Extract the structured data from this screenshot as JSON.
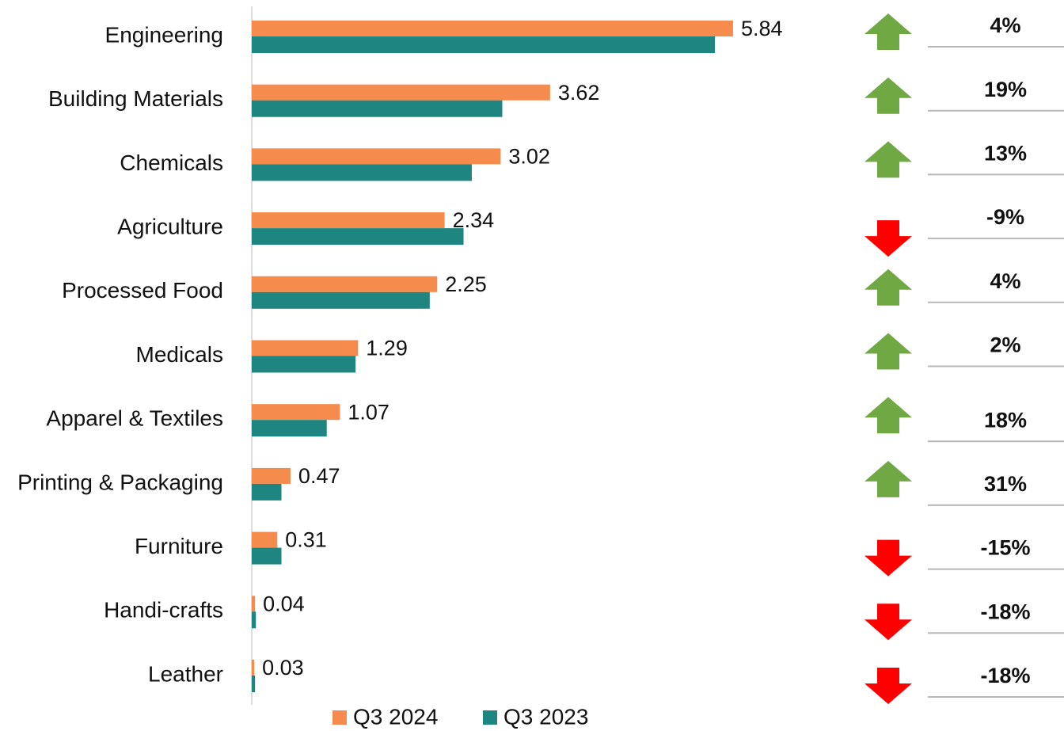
{
  "chart_data": {
    "type": "bar",
    "orientation": "horizontal",
    "categories": [
      "Engineering",
      "Building Materials",
      "Chemicals",
      "Agriculture",
      "Processed Food",
      "Medicals",
      "Apparel & Textiles",
      "Printing & Packaging",
      "Furniture",
      "Handi-crafts",
      "Leather"
    ],
    "series": [
      {
        "name": "Q3 2024",
        "color": "#f58b4c",
        "values": [
          5.84,
          3.62,
          3.02,
          2.34,
          2.25,
          1.29,
          1.07,
          0.47,
          0.31,
          0.04,
          0.03
        ]
      },
      {
        "name": "Q3 2023",
        "color": "#1f8580",
        "values": [
          5.62,
          3.04,
          2.67,
          2.57,
          2.16,
          1.26,
          0.91,
          0.36,
          0.36,
          0.05,
          0.04
        ]
      }
    ],
    "xlim": [
      0,
      6
    ],
    "changes": [
      4,
      19,
      13,
      -9,
      4,
      2,
      18,
      31,
      -15,
      -18,
      -18
    ],
    "change_labels": [
      "4%",
      "19%",
      "13%",
      "-9%",
      "4%",
      "2%",
      "18%",
      "31%",
      "-15%",
      "-18%",
      "-18%"
    ],
    "up_color": "#70a844",
    "down_color": "#ff0000"
  }
}
